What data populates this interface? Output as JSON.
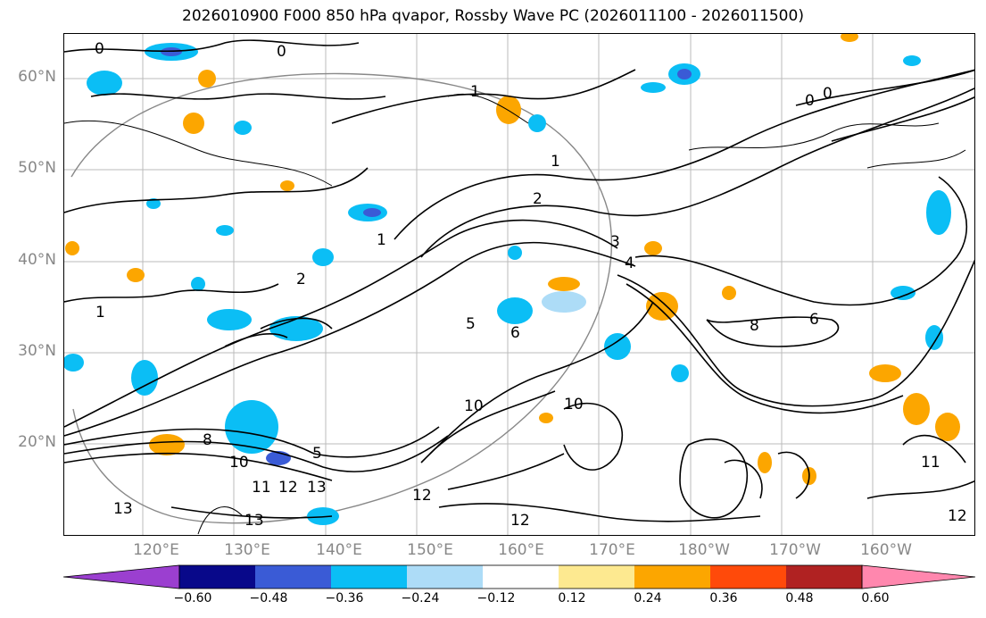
{
  "title": "2026010900 F000 850 hPa qvapor, Rossby Wave PC (2026011100 - 2026011500)",
  "axes": {
    "lat_labels": [
      "60°N",
      "50°N",
      "40°N",
      "30°N",
      "20°N"
    ],
    "lon_labels": [
      "120°E",
      "130°E",
      "140°E",
      "150°E",
      "160°E",
      "170°E",
      "180°W",
      "170°W",
      "160°W"
    ]
  },
  "contour_labels": [
    "0",
    "0",
    "0",
    "0",
    "1",
    "1",
    "1",
    "1",
    "2",
    "2",
    "3",
    "4",
    "5",
    "5",
    "6",
    "6",
    "8",
    "8",
    "10",
    "10",
    "10",
    "11",
    "11",
    "12",
    "12",
    "12",
    "12",
    "13",
    "13",
    "13"
  ],
  "colorbar": {
    "ticks": [
      "−0.60",
      "−0.48",
      "−0.36",
      "−0.24",
      "−0.12",
      "0.12",
      "0.24",
      "0.36",
      "0.48",
      "0.60"
    ],
    "colors": [
      "#9b3fd0",
      "#08088a",
      "#3a5bd6",
      "#0bbef5",
      "#addcf7",
      "#ffffff",
      "#fde990",
      "#fca600",
      "#ff4a0a",
      "#b02222",
      "#ff87ae"
    ]
  },
  "colors": {
    "map_negative_light": "#addcf7",
    "map_negative": "#0bbef5",
    "map_negative_dark": "#3a5bd6",
    "map_positive": "#fca600",
    "map_positive_light": "#fde990",
    "grid": "#bbbbbb",
    "circle": "#888888"
  }
}
